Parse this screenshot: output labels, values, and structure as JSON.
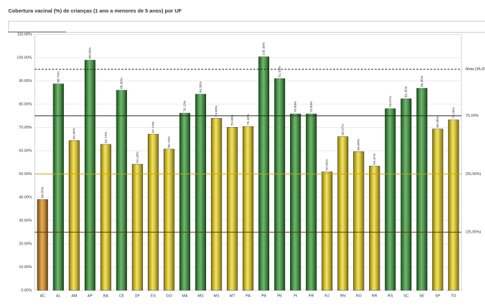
{
  "chart_data": {
    "type": "bar",
    "title": "Cobertura vacinal (%) de crianças (1 ano a menores de 5 anos) por UF",
    "categories": [
      "AC",
      "AL",
      "AM",
      "AP",
      "BA",
      "CE",
      "DF",
      "ES",
      "GO",
      "MA",
      "MG",
      "MS",
      "MT",
      "PA",
      "PB",
      "PE",
      "PI",
      "PR",
      "RJ",
      "RN",
      "RO",
      "RR",
      "RS",
      "SC",
      "SE",
      "SP",
      "TO"
    ],
    "values": [
      39.05,
      88.74,
      64.36,
      98.93,
      62.72,
      85.99,
      54.18,
      67.13,
      60.7,
      76.13,
      84.3,
      73.93,
      70.08,
      70.43,
      100.38,
      91.03,
      75.83,
      75.83,
      50.9,
      66.07,
      59.6,
      53.41,
      78.07,
      82.35,
      86.85,
      69.36,
      73.25
    ],
    "value_labels": [
      "39.05%",
      "88.74%",
      "64.36%",
      "98.93%",
      "62.72%",
      "85.99%",
      "54.18%",
      "67.13%",
      "60.70%",
      "76.13%",
      "84.30%",
      "73.93%",
      "70.08%",
      "70.43%",
      "100.38%",
      "91.03%",
      "75.83%",
      "75.83%",
      "50.90%",
      "66.07%",
      "59.60%",
      "53.41%",
      "78.07%",
      "82.35%",
      "86.85%",
      "69.36%",
      "73.25%"
    ],
    "colors": [
      "#d98200",
      "#1e8f1e",
      "#f0d400",
      "#1e8f1e",
      "#f0d400",
      "#1e8f1e",
      "#f0d400",
      "#f0d400",
      "#f0d400",
      "#1e8f1e",
      "#1e8f1e",
      "#f0d400",
      "#f0d400",
      "#f0d400",
      "#1e8f1e",
      "#1e8f1e",
      "#1e8f1e",
      "#1e8f1e",
      "#f0d400",
      "#f0d400",
      "#f0d400",
      "#f0d400",
      "#1e8f1e",
      "#1e8f1e",
      "#1e8f1e",
      "#f0d400",
      "#f0d400"
    ],
    "ylim": [
      0,
      110
    ],
    "yticks": [
      {
        "value": 0,
        "label": "0.00%"
      },
      {
        "value": 10,
        "label": "10.00%"
      },
      {
        "value": 20,
        "label": "20.00%"
      },
      {
        "value": 30,
        "label": "30.00%"
      },
      {
        "value": 40,
        "label": "40.00%"
      },
      {
        "value": 50,
        "label": "50.00%"
      },
      {
        "value": 60,
        "label": "60.00%"
      },
      {
        "value": 70,
        "label": "70.00%"
      },
      {
        "value": 80,
        "label": "80.00%"
      },
      {
        "value": 90,
        "label": "90.00%"
      },
      {
        "value": 100,
        "label": "100.00%"
      },
      {
        "value": 110,
        "label": "110.00%"
      }
    ],
    "grid": true,
    "reference_lines": [
      {
        "value": 95,
        "label": "Meta (95,00%)",
        "color": "#222222",
        "dashed": true
      },
      {
        "value": 75,
        "label": "75,00%",
        "color": "#222222",
        "dashed": false
      },
      {
        "value": 50,
        "label": "(50,00%)",
        "color": "#c9a800",
        "dashed": false
      },
      {
        "value": 25,
        "label": "(25,00%)",
        "color": "#4a3a10",
        "dashed": false
      }
    ]
  }
}
